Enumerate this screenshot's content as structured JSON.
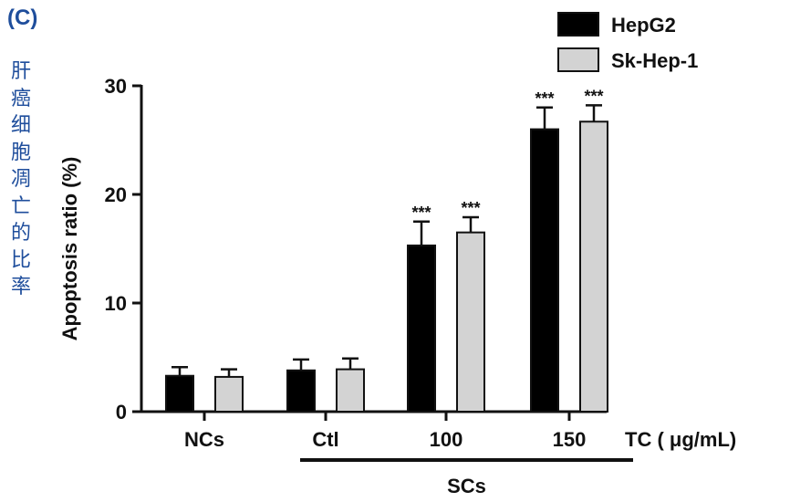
{
  "panel_label": "(C)",
  "side_label_chars": [
    "肝",
    "癌",
    "细",
    "胞",
    "凋",
    "亡",
    "的",
    "比",
    "率"
  ],
  "colors": {
    "hepg2": "#000000",
    "skhep1": "#d3d3d3",
    "side_text": "#1f4e9c"
  },
  "chart_data": {
    "type": "bar",
    "categories": [
      "NCs",
      "Ctl",
      "100",
      "150"
    ],
    "group_label": "SCs",
    "group_members": [
      "Ctl",
      "100",
      "150"
    ],
    "xlabel": "TC ( μg/mL)",
    "ylabel": "Apoptosis ratio (%)",
    "ylim": [
      0,
      30
    ],
    "yticks": [
      0,
      10,
      20,
      30
    ],
    "legend_position": "top-right",
    "series": [
      {
        "name": "HepG2",
        "values": [
          3.3,
          3.8,
          15.3,
          26.0
        ],
        "errors": [
          0.8,
          1.0,
          2.2,
          2.0
        ],
        "significance": [
          "",
          "",
          "***",
          "***"
        ]
      },
      {
        "name": "Sk-Hep-1",
        "values": [
          3.2,
          3.9,
          16.5,
          26.7
        ],
        "errors": [
          0.7,
          1.0,
          1.4,
          1.5
        ],
        "significance": [
          "",
          "",
          "***",
          "***"
        ]
      }
    ]
  }
}
